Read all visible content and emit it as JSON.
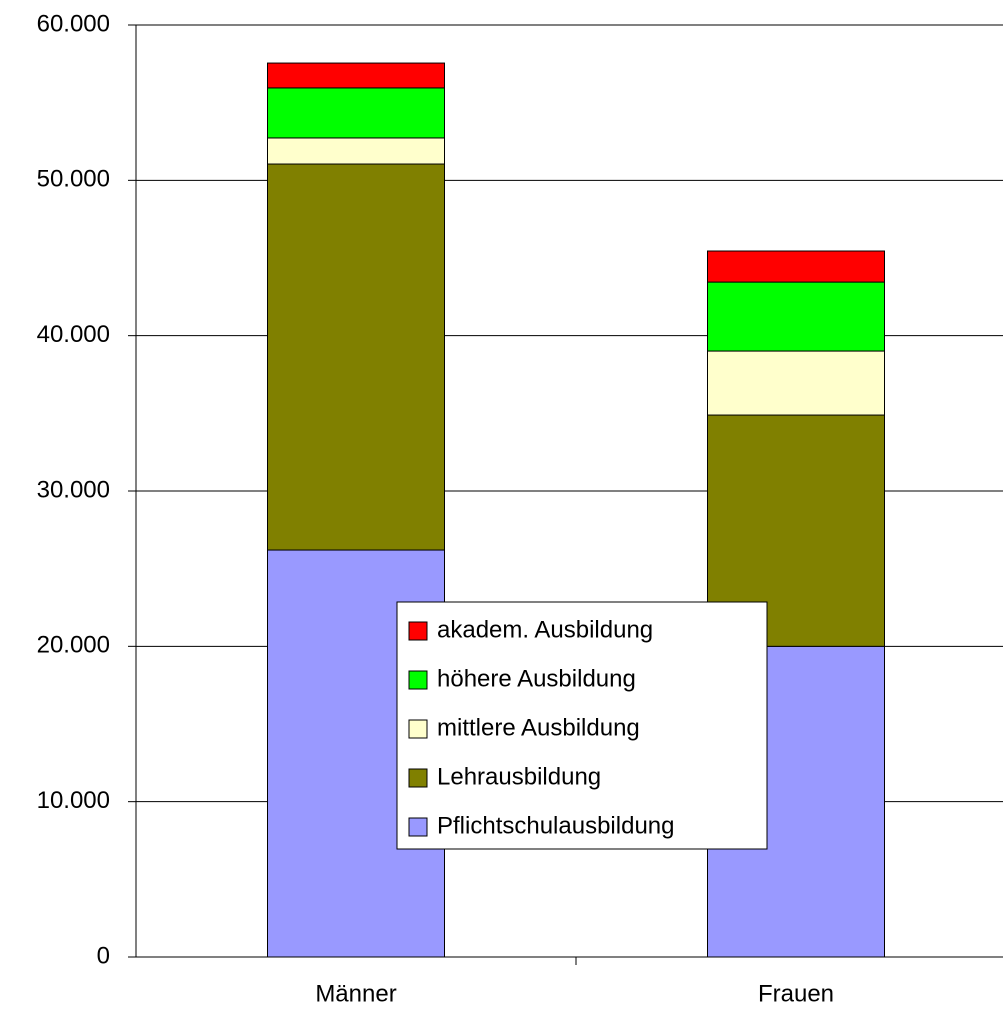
{
  "chart_data": {
    "type": "bar",
    "stacked": true,
    "categories": [
      "Männer",
      "Frauen"
    ],
    "series": [
      {
        "name": "Pflichtschulausbildung",
        "color": "#9999ff",
        "values": [
          26200,
          20000
        ]
      },
      {
        "name": "Lehrausbildung",
        "color": "#808000",
        "values": [
          24850,
          14890
        ]
      },
      {
        "name": "mittlere Ausbildung",
        "color": "#ffffcc",
        "values": [
          1680,
          4120
        ]
      },
      {
        "name": "höhere Ausbildung",
        "color": "#00ff00",
        "values": [
          3220,
          4440
        ]
      },
      {
        "name": "akadem. Ausbildung",
        "color": "#ff0000",
        "values": [
          1600,
          2000
        ]
      }
    ],
    "ylim": [
      0,
      60000
    ],
    "yticks": [
      0,
      {
        "value": 10000,
        "label": "10.000"
      },
      {
        "value": 20000,
        "label": "20.000"
      },
      {
        "value": 30000,
        "label": "30.000"
      },
      {
        "value": 40000,
        "label": "40.000"
      },
      {
        "value": 50000,
        "label": "50.000"
      },
      {
        "value": 60000,
        "label": "60.000"
      }
    ],
    "grid": true,
    "legend": "center"
  }
}
